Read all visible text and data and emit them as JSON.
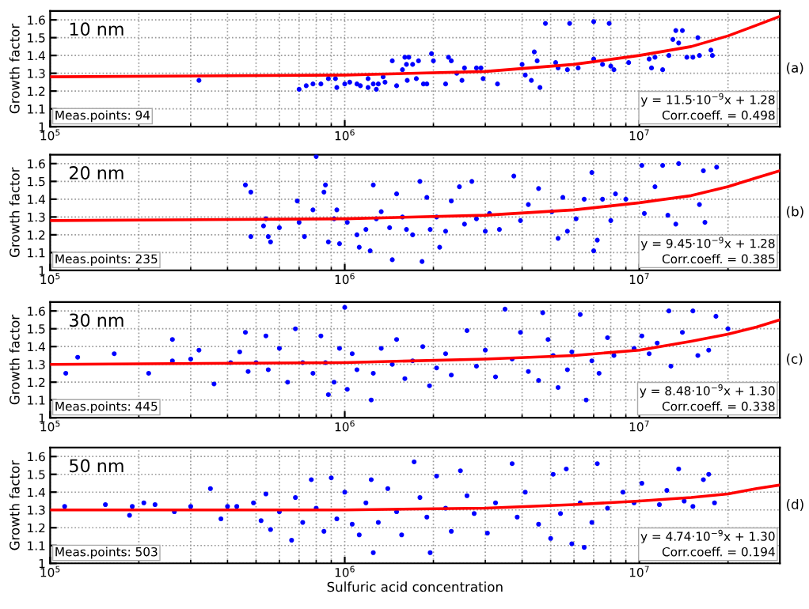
{
  "chart_data": [
    {
      "type": "scatter",
      "ylabel": "Growth factor",
      "xlim": [
        100000,
        30000000
      ],
      "ylim": [
        1,
        1.65
      ],
      "log": "x",
      "grid": true,
      "xticks": [
        {
          "value": 100000,
          "label": "10$^{5}$"
        },
        {
          "value": 1000000,
          "label": "10$^{6}$"
        },
        {
          "value": 10000000,
          "label": "10$^{7}$"
        },
        {
          "value": 200000,
          "label": null
        },
        {
          "value": 300000,
          "label": null
        },
        {
          "value": 400000,
          "label": null
        },
        {
          "value": 500000,
          "label": null
        },
        {
          "value": 600000,
          "label": null
        },
        {
          "value": 700000,
          "label": null
        },
        {
          "value": 800000,
          "label": null
        },
        {
          "value": 900000,
          "label": null
        },
        {
          "value": 2000000,
          "label": null
        },
        {
          "value": 3000000,
          "label": null
        },
        {
          "value": 4000000,
          "label": null
        },
        {
          "value": 5000000,
          "label": null
        },
        {
          "value": 6000000,
          "label": null
        },
        {
          "value": 7000000,
          "label": null
        },
        {
          "value": 8000000,
          "label": null
        },
        {
          "value": 9000000,
          "label": null
        },
        {
          "value": 20000000,
          "label": null
        }
      ],
      "yticks": [
        1,
        1.1,
        1.2,
        1.3,
        1.4,
        1.5,
        1.6
      ],
      "annotations": [
        "10 nm",
        "Meas.points: 94",
        "y = 11.5·10$^{−9}$x + 1.28",
        "Corr.coeff. = 0.498",
        "(a)"
      ],
      "series": [
        {
          "marker": "circle",
          "color": "#0000ff",
          "x": [
            320000,
            700000,
            740000,
            780000,
            830000,
            880000,
            930000,
            940000,
            1000000,
            1040000,
            1100000,
            1130000,
            1200000,
            1200000,
            1250000,
            1280000,
            1300000,
            1350000,
            1370000,
            1450000,
            1500000,
            1570000,
            1600000,
            1620000,
            1630000,
            1650000,
            1700000,
            1750000,
            1780000,
            1850000,
            1900000,
            1970000,
            2000000,
            2200000,
            2250000,
            2300000,
            2400000,
            2500000,
            2550000,
            2800000,
            2900000,
            2950000,
            3300000,
            4000000,
            4100000,
            4300000,
            4400000,
            4500000,
            4600000,
            4800000,
            5200000,
            5300000,
            5700000,
            5800000,
            6200000,
            7000000,
            7000000,
            7500000,
            7900000,
            8000000,
            8200000,
            9200000,
            10800000,
            11000000,
            11300000,
            12000000,
            12600000,
            13000000,
            13300000,
            13600000,
            14000000,
            14500000,
            15200000,
            15800000,
            16000000,
            17500000,
            17700000
          ],
          "values": [
            1.26,
            1.21,
            1.23,
            1.24,
            1.24,
            1.27,
            1.27,
            1.22,
            1.24,
            1.25,
            1.24,
            1.23,
            1.27,
            1.22,
            1.24,
            1.21,
            1.24,
            1.28,
            1.25,
            1.37,
            1.23,
            1.32,
            1.39,
            1.35,
            1.26,
            1.39,
            1.35,
            1.27,
            1.37,
            1.24,
            1.24,
            1.41,
            1.37,
            1.24,
            1.39,
            1.37,
            1.3,
            1.26,
            1.33,
            1.33,
            1.33,
            1.27,
            1.24,
            1.35,
            1.29,
            1.26,
            1.42,
            1.37,
            1.22,
            1.58,
            1.36,
            1.33,
            1.32,
            1.58,
            1.33,
            1.59,
            1.38,
            1.35,
            1.58,
            1.34,
            1.32,
            1.36,
            1.38,
            1.33,
            1.39,
            1.32,
            1.4,
            1.49,
            1.54,
            1.47,
            1.54,
            1.39,
            1.39,
            1.5,
            1.4,
            1.43,
            1.4
          ]
        },
        {
          "type": "line",
          "color": "#ff0000",
          "x": [
            100000,
            1000000,
            3000000,
            6000000,
            10000000,
            15000000,
            20000000,
            25000000,
            30000000
          ],
          "values": [
            1.28,
            1.29,
            1.31,
            1.35,
            1.4,
            1.45,
            1.51,
            1.57,
            1.62
          ]
        }
      ]
    },
    {
      "type": "scatter",
      "ylabel": "Growth factor",
      "xlim": [
        100000,
        30000000
      ],
      "ylim": [
        1,
        1.65
      ],
      "log": "x",
      "grid": true,
      "xticks": [
        {
          "value": 100000,
          "label": "10$^{5}$"
        },
        {
          "value": 1000000,
          "label": "10$^{6}$"
        },
        {
          "value": 10000000,
          "label": "10$^{7}$"
        },
        {
          "value": 200000,
          "label": null
        },
        {
          "value": 300000,
          "label": null
        },
        {
          "value": 400000,
          "label": null
        },
        {
          "value": 500000,
          "label": null
        },
        {
          "value": 600000,
          "label": null
        },
        {
          "value": 700000,
          "label": null
        },
        {
          "value": 800000,
          "label": null
        },
        {
          "value": 900000,
          "label": null
        },
        {
          "value": 2000000,
          "label": null
        },
        {
          "value": 3000000,
          "label": null
        },
        {
          "value": 4000000,
          "label": null
        },
        {
          "value": 5000000,
          "label": null
        },
        {
          "value": 6000000,
          "label": null
        },
        {
          "value": 7000000,
          "label": null
        },
        {
          "value": 8000000,
          "label": null
        },
        {
          "value": 9000000,
          "label": null
        },
        {
          "value": 20000000,
          "label": null
        }
      ],
      "yticks": [
        1,
        1.1,
        1.2,
        1.3,
        1.4,
        1.5,
        1.6
      ],
      "annotations": [
        "20 nm",
        "Meas.points: 235",
        "y = 9.45·10$^{−9}$x + 1.28",
        "Corr.coeff. = 0.385",
        "(b)"
      ],
      "series": [
        {
          "marker": "circle",
          "color": "#0000ff",
          "x": [
            460000,
            480000,
            480000,
            530000,
            540000,
            550000,
            560000,
            600000,
            690000,
            700000,
            730000,
            780000,
            800000,
            850000,
            860000,
            880000,
            920000,
            940000,
            960000,
            1020000,
            1100000,
            1120000,
            1180000,
            1220000,
            1250000,
            1280000,
            1330000,
            1420000,
            1450000,
            1500000,
            1570000,
            1620000,
            1700000,
            1800000,
            1830000,
            1900000,
            1950000,
            2050000,
            2100000,
            2200000,
            2300000,
            2450000,
            2550000,
            2700000,
            2800000,
            3000000,
            3100000,
            3350000,
            3750000,
            3950000,
            4200000,
            4550000,
            5050000,
            5300000,
            5500000,
            5700000,
            6100000,
            6500000,
            6900000,
            7000000,
            7200000,
            7500000,
            8000000,
            8300000,
            9000000,
            10200000,
            10400000,
            11300000,
            12000000,
            12500000,
            13300000,
            13600000,
            16000000,
            16500000,
            16700000,
            18300000
          ],
          "values": [
            1.48,
            1.19,
            1.44,
            1.25,
            1.29,
            1.19,
            1.16,
            1.24,
            1.39,
            1.27,
            1.19,
            1.34,
            1.64,
            1.44,
            1.48,
            1.16,
            1.29,
            1.34,
            1.15,
            1.27,
            1.2,
            1.13,
            1.23,
            1.11,
            1.48,
            1.29,
            1.33,
            1.24,
            1.06,
            1.43,
            1.3,
            1.23,
            1.2,
            1.5,
            1.05,
            1.41,
            1.23,
            1.3,
            1.13,
            1.22,
            1.39,
            1.47,
            1.26,
            1.5,
            1.29,
            1.22,
            1.32,
            1.23,
            1.53,
            1.28,
            1.37,
            1.46,
            1.33,
            1.18,
            1.41,
            1.22,
            1.29,
            1.4,
            1.55,
            1.11,
            1.17,
            1.4,
            1.28,
            1.43,
            1.4,
            1.59,
            1.32,
            1.47,
            1.59,
            1.31,
            1.26,
            1.6,
            1.37,
            1.56,
            1.27,
            1.58
          ]
        },
        {
          "type": "line",
          "color": "#ff0000",
          "x": [
            100000,
            1000000,
            3000000,
            6000000,
            10000000,
            15000000,
            20000000,
            25000000,
            30000000
          ],
          "values": [
            1.28,
            1.29,
            1.31,
            1.34,
            1.38,
            1.42,
            1.47,
            1.52,
            1.56
          ]
        }
      ]
    },
    {
      "type": "scatter",
      "ylabel": "Growth factor",
      "xlim": [
        100000,
        30000000
      ],
      "ylim": [
        1,
        1.65
      ],
      "log": "x",
      "grid": true,
      "xticks": [
        {
          "value": 100000,
          "label": "10$^{5}$"
        },
        {
          "value": 1000000,
          "label": "10$^{6}$"
        },
        {
          "value": 10000000,
          "label": "10$^{7}$"
        },
        {
          "value": 200000,
          "label": null
        },
        {
          "value": 300000,
          "label": null
        },
        {
          "value": 400000,
          "label": null
        },
        {
          "value": 500000,
          "label": null
        },
        {
          "value": 600000,
          "label": null
        },
        {
          "value": 700000,
          "label": null
        },
        {
          "value": 800000,
          "label": null
        },
        {
          "value": 900000,
          "label": null
        },
        {
          "value": 2000000,
          "label": null
        },
        {
          "value": 3000000,
          "label": null
        },
        {
          "value": 4000000,
          "label": null
        },
        {
          "value": 5000000,
          "label": null
        },
        {
          "value": 6000000,
          "label": null
        },
        {
          "value": 7000000,
          "label": null
        },
        {
          "value": 8000000,
          "label": null
        },
        {
          "value": 9000000,
          "label": null
        },
        {
          "value": 20000000,
          "label": null
        }
      ],
      "yticks": [
        1,
        1.1,
        1.2,
        1.3,
        1.4,
        1.5,
        1.6
      ],
      "annotations": [
        "30 nm",
        "Meas.points: 445",
        "y = 8.48·10$^{−9}$x + 1.30",
        "Corr.coeff. = 0.338",
        "(c)"
      ],
      "series": [
        {
          "marker": "circle",
          "color": "#0000ff",
          "x": [
            113000,
            124000,
            165000,
            216000,
            260000,
            260000,
            300000,
            320000,
            360000,
            410000,
            440000,
            460000,
            470000,
            500000,
            540000,
            550000,
            600000,
            640000,
            680000,
            720000,
            780000,
            830000,
            860000,
            880000,
            920000,
            960000,
            1000000,
            1020000,
            1060000,
            1100000,
            1230000,
            1250000,
            1330000,
            1450000,
            1500000,
            1600000,
            1700000,
            1840000,
            1940000,
            2050000,
            2200000,
            2300000,
            2600000,
            2800000,
            3000000,
            3250000,
            3500000,
            3700000,
            3950000,
            4200000,
            4550000,
            4700000,
            4900000,
            5100000,
            5300000,
            5700000,
            5900000,
            6300000,
            6600000,
            6900000,
            7300000,
            7800000,
            8200000,
            9600000,
            10200000,
            10800000,
            11500000,
            12600000,
            12800000,
            14000000,
            15200000,
            15800000,
            17200000,
            18200000,
            20000000
          ],
          "values": [
            1.25,
            1.34,
            1.36,
            1.25,
            1.44,
            1.32,
            1.33,
            1.38,
            1.19,
            1.31,
            1.37,
            1.48,
            1.26,
            1.31,
            1.46,
            1.27,
            1.39,
            1.2,
            1.5,
            1.31,
            1.25,
            1.46,
            1.31,
            1.13,
            1.2,
            1.39,
            1.62,
            1.16,
            1.36,
            1.27,
            1.1,
            1.25,
            1.39,
            1.3,
            1.44,
            1.22,
            1.32,
            1.4,
            1.18,
            1.28,
            1.36,
            1.24,
            1.49,
            1.29,
            1.38,
            1.23,
            1.61,
            1.33,
            1.48,
            1.26,
            1.21,
            1.59,
            1.44,
            1.35,
            1.17,
            1.27,
            1.37,
            1.58,
            1.1,
            1.32,
            1.25,
            1.45,
            1.35,
            1.39,
            1.46,
            1.36,
            1.42,
            1.6,
            1.29,
            1.48,
            1.6,
            1.35,
            1.38,
            1.57,
            1.5
          ]
        },
        {
          "type": "line",
          "color": "#ff0000",
          "x": [
            100000,
            1000000,
            3000000,
            6000000,
            10000000,
            15000000,
            20000000,
            25000000,
            30000000
          ],
          "values": [
            1.3,
            1.31,
            1.33,
            1.35,
            1.38,
            1.43,
            1.47,
            1.51,
            1.55
          ]
        }
      ]
    },
    {
      "type": "scatter",
      "ylabel": "Growth factor",
      "xlabel": "Sulfuric acid concentration",
      "xlim": [
        100000,
        30000000
      ],
      "ylim": [
        1,
        1.65
      ],
      "log": "x",
      "grid": true,
      "xticks": [
        {
          "value": 100000,
          "label": "10$^{5}$"
        },
        {
          "value": 1000000,
          "label": "10$^{6}$"
        },
        {
          "value": 10000000,
          "label": "10$^{7}$"
        },
        {
          "value": 200000,
          "label": null
        },
        {
          "value": 300000,
          "label": null
        },
        {
          "value": 400000,
          "label": null
        },
        {
          "value": 500000,
          "label": null
        },
        {
          "value": 600000,
          "label": null
        },
        {
          "value": 700000,
          "label": null
        },
        {
          "value": 800000,
          "label": null
        },
        {
          "value": 900000,
          "label": null
        },
        {
          "value": 2000000,
          "label": null
        },
        {
          "value": 3000000,
          "label": null
        },
        {
          "value": 4000000,
          "label": null
        },
        {
          "value": 5000000,
          "label": null
        },
        {
          "value": 6000000,
          "label": null
        },
        {
          "value": 7000000,
          "label": null
        },
        {
          "value": 8000000,
          "label": null
        },
        {
          "value": 9000000,
          "label": null
        },
        {
          "value": 20000000,
          "label": null
        }
      ],
      "yticks": [
        1,
        1.1,
        1.2,
        1.3,
        1.4,
        1.5,
        1.6
      ],
      "annotations": [
        "50 nm",
        "Meas.points: 503",
        "y = 4.74·10$^{−9}$x + 1.30",
        "Corr.coeff. = 0.194",
        "(d)"
      ],
      "series": [
        {
          "marker": "circle",
          "color": "#0000ff",
          "x": [
            112000,
            154000,
            186000,
            190000,
            208000,
            227000,
            264000,
            300000,
            350000,
            380000,
            400000,
            430000,
            490000,
            520000,
            540000,
            560000,
            600000,
            660000,
            680000,
            720000,
            770000,
            800000,
            850000,
            900000,
            940000,
            1000000,
            1060000,
            1120000,
            1180000,
            1230000,
            1250000,
            1300000,
            1400000,
            1500000,
            1560000,
            1720000,
            1800000,
            1900000,
            1950000,
            2050000,
            2200000,
            2300000,
            2470000,
            2600000,
            2750000,
            3050000,
            3250000,
            3700000,
            3850000,
            4100000,
            4550000,
            5000000,
            5100000,
            5400000,
            5650000,
            5900000,
            6300000,
            6500000,
            6900000,
            7200000,
            7800000,
            8800000,
            9600000,
            10200000,
            11700000,
            12400000,
            13600000,
            14200000,
            15200000,
            16500000,
            17200000,
            18000000
          ],
          "values": [
            1.32,
            1.33,
            1.27,
            1.32,
            1.34,
            1.33,
            1.29,
            1.32,
            1.42,
            1.25,
            1.32,
            1.32,
            1.34,
            1.24,
            1.39,
            1.19,
            1.29,
            1.13,
            1.37,
            1.23,
            1.47,
            1.31,
            1.18,
            1.48,
            1.25,
            1.4,
            1.22,
            1.16,
            1.34,
            1.47,
            1.06,
            1.23,
            1.42,
            1.29,
            1.16,
            1.57,
            1.37,
            1.26,
            1.06,
            1.49,
            1.31,
            1.18,
            1.52,
            1.38,
            1.28,
            1.17,
            1.34,
            1.56,
            1.26,
            1.4,
            1.22,
            1.14,
            1.5,
            1.28,
            1.53,
            1.11,
            1.34,
            1.09,
            1.23,
            1.56,
            1.31,
            1.4,
            1.34,
            1.45,
            1.33,
            1.41,
            1.53,
            1.35,
            1.32,
            1.47,
            1.5,
            1.34
          ]
        },
        {
          "type": "line",
          "color": "#ff0000",
          "x": [
            100000,
            1000000,
            3000000,
            6000000,
            10000000,
            15000000,
            20000000,
            25000000,
            30000000
          ],
          "values": [
            1.3,
            1.3,
            1.31,
            1.33,
            1.35,
            1.37,
            1.39,
            1.42,
            1.44
          ]
        }
      ]
    }
  ]
}
